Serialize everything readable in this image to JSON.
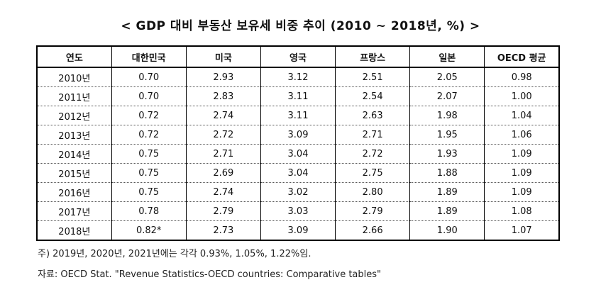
{
  "title": "< GDP 대비 부동산 보유세 비중 추이 (2010 ~ 2018년, %) >",
  "table": {
    "headers": [
      "연도",
      "대한민국",
      "미국",
      "영국",
      "프랑스",
      "일본",
      "OECD 평균"
    ],
    "rows": [
      [
        "2010년",
        "0.70",
        "2.93",
        "3.12",
        "2.51",
        "2.05",
        "0.98"
      ],
      [
        "2011년",
        "0.70",
        "2.83",
        "3.11",
        "2.54",
        "2.07",
        "1.00"
      ],
      [
        "2012년",
        "0.72",
        "2.74",
        "3.11",
        "2.63",
        "1.98",
        "1.04"
      ],
      [
        "2013년",
        "0.72",
        "2.72",
        "3.09",
        "2.71",
        "1.95",
        "1.06"
      ],
      [
        "2014년",
        "0.75",
        "2.71",
        "3.04",
        "2.72",
        "1.93",
        "1.09"
      ],
      [
        "2015년",
        "0.75",
        "2.69",
        "3.04",
        "2.75",
        "1.88",
        "1.09"
      ],
      [
        "2016년",
        "0.75",
        "2.74",
        "3.02",
        "2.80",
        "1.89",
        "1.09"
      ],
      [
        "2017년",
        "0.78",
        "2.79",
        "3.03",
        "2.79",
        "1.89",
        "1.08"
      ],
      [
        "2018년",
        "0.82*",
        "2.73",
        "3.09",
        "2.66",
        "1.90",
        "1.07"
      ]
    ]
  },
  "notes": {
    "footnote": "주) 2019년, 2020년, 2021년에는 각각 0.93%, 1.05%, 1.22%임.",
    "source": "자료: OECD Stat. \"Revenue Statistics-OECD countries: Comparative tables\""
  }
}
